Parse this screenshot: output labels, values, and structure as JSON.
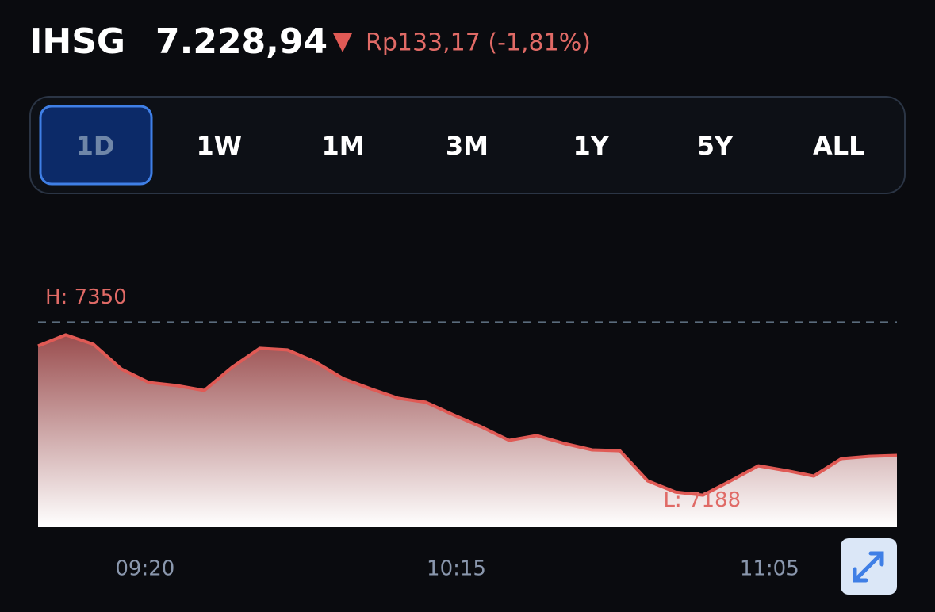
{
  "header": {
    "ticker": "IHSG",
    "price": "7.228,94",
    "change": "Rp133,17 (-1,81%)"
  },
  "tabs": [
    "1D",
    "1W",
    "1M",
    "3M",
    "1Y",
    "5Y",
    "ALL"
  ],
  "chart_data": {
    "type": "area",
    "color": "#e05a55",
    "high": {
      "value": 7350,
      "label": "H: 7350"
    },
    "low": {
      "value": 7188,
      "label": "L: 7188"
    },
    "x": [
      0,
      1,
      2,
      3,
      4,
      5,
      6,
      7,
      8,
      9,
      10,
      11,
      12,
      13,
      14,
      15,
      16,
      17,
      18,
      19,
      20,
      21,
      22,
      23,
      24,
      25,
      26,
      27,
      28,
      29,
      30,
      31
    ],
    "values": [
      7327.7,
      7338.1,
      7329.2,
      7306.2,
      7293.5,
      7290.6,
      7286.1,
      7307.7,
      7325.5,
      7324,
      7312.9,
      7297.3,
      7287.6,
      7278.7,
      7275,
      7263.1,
      7251.9,
      7239.3,
      7243.8,
      7236.3,
      7230.4,
      7229.6,
      7201.4,
      7191,
      7188,
      7201.4,
      7215.5,
      7211,
      7205.9,
      7222.2,
      7224.4,
      7225.2
    ],
    "xlim": [
      0,
      31
    ],
    "ylim": [
      7158,
      7380
    ],
    "xticks": [
      {
        "value": 3.86,
        "label": "09:20"
      },
      {
        "value": 15.1,
        "label": "10:15"
      },
      {
        "value": 26.4,
        "label": "11:05"
      }
    ]
  }
}
